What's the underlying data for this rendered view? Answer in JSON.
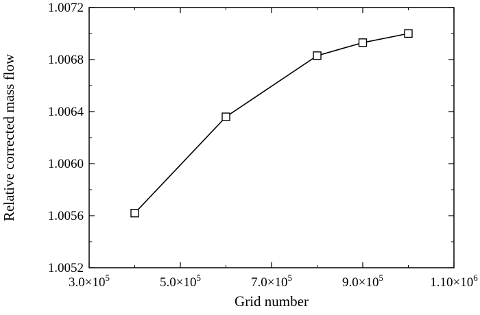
{
  "chart_data": {
    "type": "line",
    "title": "",
    "xlabel": "Grid number",
    "ylabel": "Relative corrected mass flow",
    "xlim": [
      300000,
      1100000
    ],
    "ylim": [
      1.0052,
      1.0072
    ],
    "x_ticks": [
      300000,
      500000,
      700000,
      900000,
      1100000
    ],
    "x_tick_labels": [
      "3.0×10^5",
      "5.0×10^5",
      "7.0×10^5",
      "9.0×10^5",
      "1.10×10^6"
    ],
    "y_ticks": [
      1.0052,
      1.0056,
      1.006,
      1.0064,
      1.0068,
      1.0072
    ],
    "y_tick_labels": [
      "1.0052",
      "1.0056",
      "1.0060",
      "1.0064",
      "1.0068",
      "1.0072"
    ],
    "grid": false,
    "series": [
      {
        "marker": "open-square",
        "color": "#000000",
        "x": [
          400000,
          600000,
          800000,
          900000,
          1000000
        ],
        "y": [
          1.00562,
          1.00636,
          1.00683,
          1.00693,
          1.007
        ]
      }
    ]
  }
}
